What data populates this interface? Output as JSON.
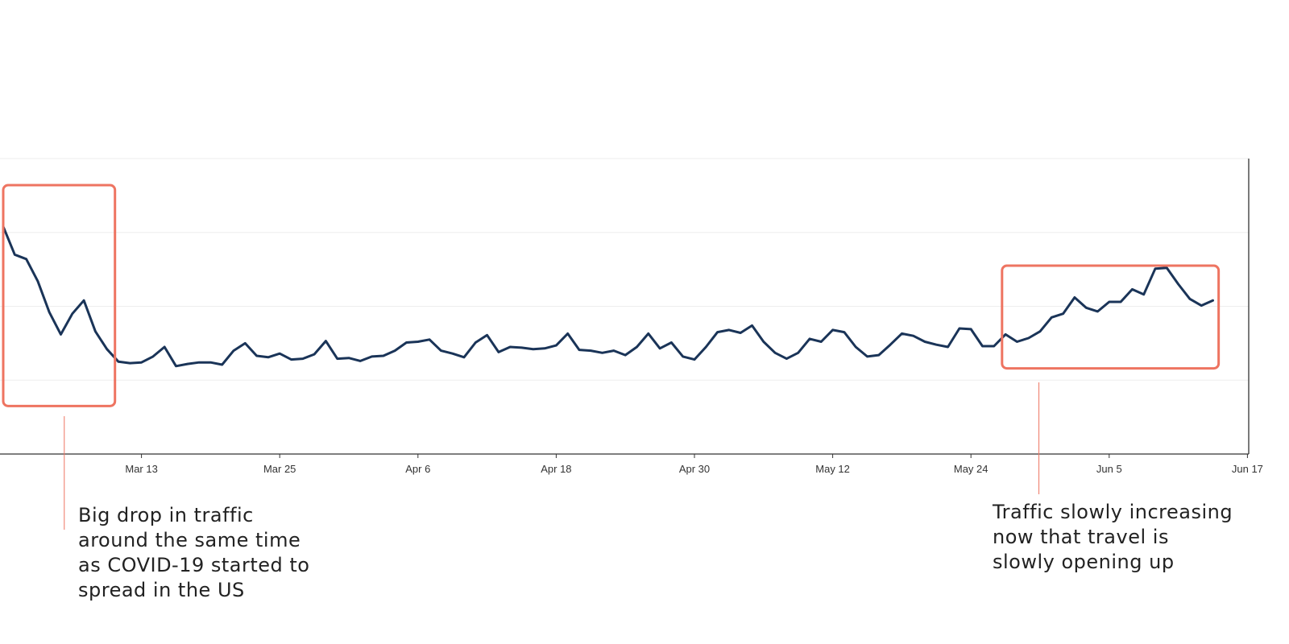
{
  "chart_data": {
    "type": "line",
    "title": "",
    "xlabel": "",
    "ylabel": "",
    "x_tick_labels": [
      "Mar 13",
      "Mar 25",
      "Apr 6",
      "Apr 18",
      "Apr 30",
      "May 12",
      "May 24",
      "Jun 5",
      "Jun 17"
    ],
    "x_tick_days": [
      12,
      24,
      36,
      48,
      60,
      72,
      84,
      96,
      108
    ],
    "x_range_days": [
      0,
      107
    ],
    "y_axis_labels_shown": false,
    "ylim": [
      0,
      4
    ],
    "grid": "horizontal",
    "line_color": "#1a3458",
    "series": [
      {
        "name": "",
        "values": [
          3.08,
          2.7,
          2.64,
          2.34,
          1.92,
          1.62,
          1.9,
          2.08,
          1.66,
          1.42,
          1.25,
          1.23,
          1.24,
          1.32,
          1.45,
          1.19,
          1.22,
          1.24,
          1.24,
          1.21,
          1.4,
          1.5,
          1.33,
          1.31,
          1.36,
          1.28,
          1.29,
          1.35,
          1.53,
          1.29,
          1.3,
          1.26,
          1.32,
          1.33,
          1.4,
          1.51,
          1.52,
          1.55,
          1.4,
          1.36,
          1.31,
          1.51,
          1.61,
          1.38,
          1.45,
          1.44,
          1.42,
          1.43,
          1.47,
          1.63,
          1.41,
          1.4,
          1.37,
          1.4,
          1.34,
          1.45,
          1.63,
          1.43,
          1.51,
          1.32,
          1.28,
          1.45,
          1.65,
          1.68,
          1.64,
          1.74,
          1.52,
          1.37,
          1.29,
          1.37,
          1.56,
          1.52,
          1.68,
          1.65,
          1.45,
          1.32,
          1.34,
          1.48,
          1.63,
          1.6,
          1.52,
          1.48,
          1.45,
          1.7,
          1.69,
          1.46,
          1.46,
          1.62,
          1.52,
          1.57,
          1.66,
          1.85,
          1.9,
          2.12,
          1.98,
          1.93,
          2.06,
          2.06,
          2.23,
          2.16,
          2.51,
          2.52,
          2.3,
          2.1,
          2.01,
          2.08
        ]
      }
    ],
    "highlight_boxes": [
      {
        "x_day_range": [
          0,
          9.7
        ],
        "y_range": [
          0.65,
          3.64
        ]
      },
      {
        "x_day_range": [
          86.7,
          105.5
        ],
        "y_range": [
          1.16,
          2.55
        ]
      }
    ]
  },
  "annotations": {
    "left": {
      "lines": [
        "Big drop in traffic",
        "around the same time",
        "as COVID-19 started to",
        "spread in the US"
      ],
      "leader_x_day": 5.3
    },
    "right": {
      "lines": [
        "Traffic slowly increasing",
        "now that travel is",
        "slowly opening up"
      ],
      "leader_x_day": 89.9
    }
  },
  "colors": {
    "line": "#1a3458",
    "highlight": "#ee7461",
    "leader": "#ee7461",
    "grid": "#eeeeee",
    "axis": "#333333"
  }
}
